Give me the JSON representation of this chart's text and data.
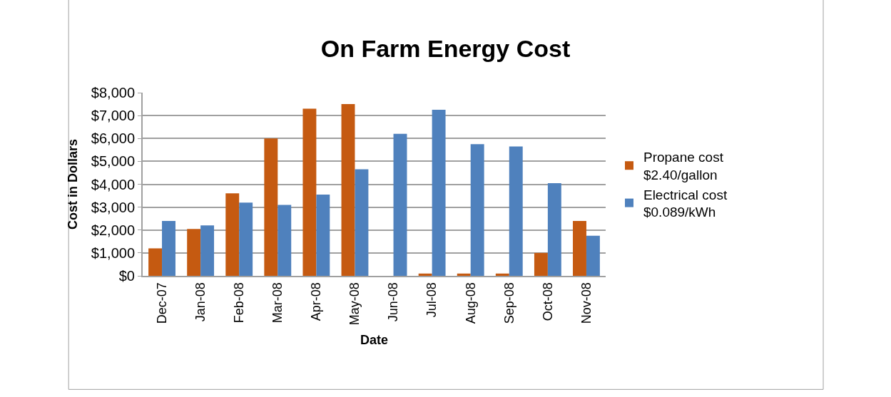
{
  "chart_data": {
    "type": "bar",
    "title": "On Farm Energy Cost",
    "xlabel": "Date",
    "ylabel": "Cost in Dollars",
    "categories": [
      "Dec-07",
      "Jan-08",
      "Feb-08",
      "Mar-08",
      "Apr-08",
      "May-08",
      "Jun-08",
      "Jul-08",
      "Aug-08",
      "Sep-08",
      "Oct-08",
      "Nov-08"
    ],
    "series": [
      {
        "name": "Propane cost\n$2.40/gallon",
        "color": "#c55a11",
        "values": [
          1200,
          2050,
          3600,
          6000,
          7300,
          7500,
          0,
          100,
          100,
          100,
          1000,
          2400
        ]
      },
      {
        "name": "Electrical cost\n$0.089/kWh",
        "color": "#4f81bd",
        "values": [
          2400,
          2200,
          3200,
          3100,
          3550,
          4650,
          6200,
          7250,
          5750,
          5650,
          4050,
          1750
        ]
      }
    ],
    "ylim": [
      0,
      8000
    ],
    "yticks": [
      {
        "value": 0,
        "label": "$0"
      },
      {
        "value": 1000,
        "label": "$1,000"
      },
      {
        "value": 2000,
        "label": "$2,000"
      },
      {
        "value": 3000,
        "label": "$3,000"
      },
      {
        "value": 4000,
        "label": "$4,000"
      },
      {
        "value": 5000,
        "label": "$5,000"
      },
      {
        "value": 6000,
        "label": "$6,000"
      },
      {
        "value": 7000,
        "label": "$7,000"
      },
      {
        "value": 8000,
        "label": "$8,000"
      }
    ],
    "grid": "y",
    "legend": "right"
  }
}
